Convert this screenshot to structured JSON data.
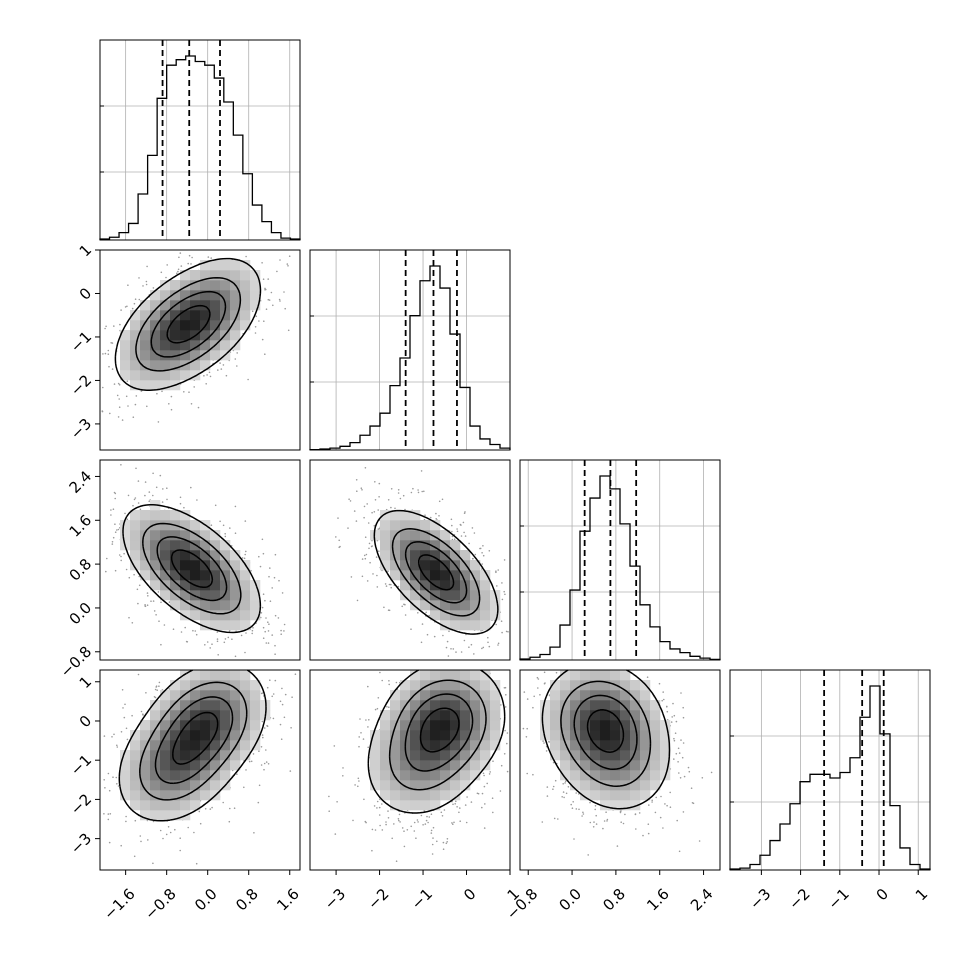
{
  "chart_data": {
    "type": "corner",
    "parameters": [
      {
        "range": [
          -2.1,
          1.8
        ],
        "ticks": [
          "-1.6",
          "-0.8",
          "0.0",
          "0.8",
          "1.6"
        ],
        "tick_values": [
          -1.6,
          -0.8,
          0.0,
          0.8,
          1.6
        ],
        "quantiles": [
          -0.88,
          -0.36,
          0.24
        ],
        "peak": -0.3,
        "hist": [
          0.005,
          0.015,
          0.04,
          0.09,
          0.25,
          0.46,
          0.77,
          0.95,
          0.98,
          1.0,
          0.97,
          0.95,
          0.88,
          0.75,
          0.57,
          0.36,
          0.19,
          0.1,
          0.04,
          0.01,
          0.005
        ]
      },
      {
        "range": [
          -3.6,
          1.0
        ],
        "ticks": [
          "-3",
          "-2",
          "-1",
          "0",
          "1"
        ],
        "tick_values": [
          -3,
          -2,
          -1,
          0,
          1
        ],
        "quantiles": [
          -1.4,
          -0.76,
          -0.22
        ],
        "peak": -0.6,
        "hist": [
          0.002,
          0.005,
          0.01,
          0.02,
          0.04,
          0.08,
          0.13,
          0.2,
          0.35,
          0.5,
          0.73,
          0.92,
          1.0,
          0.88,
          0.63,
          0.34,
          0.13,
          0.06,
          0.03,
          0.01
        ]
      },
      {
        "range": [
          -0.95,
          2.7
        ],
        "ticks": [
          "-0.8",
          "0.0",
          "0.8",
          "1.6",
          "2.4"
        ],
        "tick_values": [
          -0.8,
          0.0,
          0.8,
          1.6,
          2.4
        ],
        "quantiles": [
          0.23,
          0.7,
          1.17
        ],
        "peak": 0.65,
        "hist": [
          0.005,
          0.015,
          0.03,
          0.07,
          0.19,
          0.38,
          0.7,
          0.88,
          1.0,
          0.93,
          0.74,
          0.51,
          0.3,
          0.18,
          0.1,
          0.06,
          0.04,
          0.02,
          0.01,
          0.003
        ]
      },
      {
        "range": [
          -3.8,
          1.3
        ],
        "ticks": [
          "-3",
          "-2",
          "-1",
          "0",
          "1"
        ],
        "tick_values": [
          -3,
          -2,
          -1,
          0,
          1
        ],
        "quantiles": [
          -1.4,
          -0.43,
          0.12
        ],
        "peak": 0.0,
        "hist": [
          0.005,
          0.01,
          0.03,
          0.08,
          0.16,
          0.25,
          0.36,
          0.48,
          0.52,
          0.52,
          0.5,
          0.53,
          0.61,
          0.83,
          1.0,
          0.74,
          0.35,
          0.12,
          0.03,
          0.005
        ]
      }
    ],
    "pairs": [
      {
        "row": 1,
        "col": 0,
        "peaks": [
          {
            "x": -0.75,
            "y": -0.95,
            "w": 0.9
          },
          {
            "x": -0.05,
            "y": -0.5,
            "w": 1.0
          }
        ],
        "rho": 0.45
      },
      {
        "row": 2,
        "col": 0,
        "peaks": [
          {
            "x": -0.6,
            "y": 0.85,
            "w": 0.9
          },
          {
            "x": -0.05,
            "y": 0.6,
            "w": 1.0
          }
        ],
        "rho": -0.55
      },
      {
        "row": 3,
        "col": 0,
        "peaks": [
          {
            "x": -0.65,
            "y": -1.15,
            "w": 0.8
          },
          {
            "x": 0.0,
            "y": 0.0,
            "w": 1.0
          }
        ],
        "rho": 0.25
      },
      {
        "row": 2,
        "col": 1,
        "peaks": [
          {
            "x": -0.7,
            "y": 0.65,
            "w": 1.0
          }
        ],
        "rho": -0.6
      },
      {
        "row": 3,
        "col": 1,
        "peaks": [
          {
            "x": -0.5,
            "y": 0.0,
            "w": 1.0
          },
          {
            "x": -1.1,
            "y": -1.1,
            "w": 0.5
          }
        ],
        "rho": 0.1
      },
      {
        "row": 3,
        "col": 2,
        "peaks": [
          {
            "x": 0.55,
            "y": 0.0,
            "w": 1.0
          },
          {
            "x": 0.8,
            "y": -1.0,
            "w": 0.5
          }
        ],
        "rho": -0.1
      }
    ],
    "grid": true,
    "quantile_style": "dashed"
  }
}
